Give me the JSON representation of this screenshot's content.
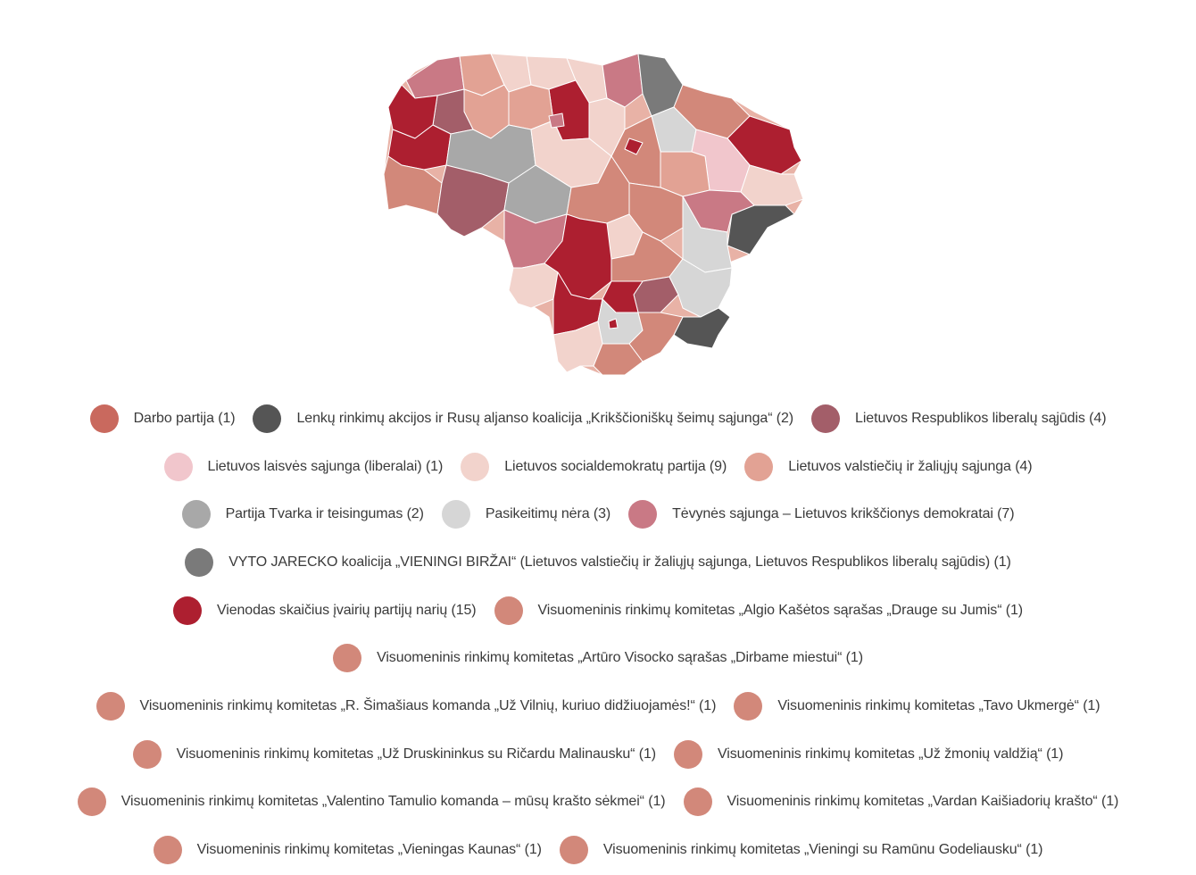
{
  "colors": {
    "darbo": "#c9695e",
    "lenku": "#555555",
    "liberalu": "#a35e69",
    "laisves": "#f1c6cc",
    "socdem": "#f2d3cc",
    "valstieciu": "#e2a294",
    "tvarka": "#a8a8a8",
    "nera": "#d6d6d6",
    "tevynes": "#c97985",
    "jarecko": "#7a7a7a",
    "vienodas": "#ad1f30",
    "komitetas": "#d2887a"
  },
  "legend": {
    "rows": [
      [
        {
          "label": "Darbo partija (1)",
          "color": "#c9695e"
        },
        {
          "label": "Lenkų rinkimų akcijos ir Rusų aljanso koalicija „Krikščioniškų šeimų sąjunga“ (2)",
          "color": "#555555"
        },
        {
          "label": "Lietuvos Respublikos liberalų sąjūdis (4)",
          "color": "#a35e69"
        }
      ],
      [
        {
          "label": "Lietuvos laisvės sąjunga (liberalai) (1)",
          "color": "#f1c6cc"
        },
        {
          "label": "Lietuvos socialdemokratų partija (9)",
          "color": "#f2d3cc"
        },
        {
          "label": "Lietuvos valstiečių ir žaliųjų sąjunga (4)",
          "color": "#e2a294"
        }
      ],
      [
        {
          "label": "Partija Tvarka ir teisingumas (2)",
          "color": "#a8a8a8"
        },
        {
          "label": "Pasikeitimų nėra (3)",
          "color": "#d6d6d6"
        },
        {
          "label": "Tėvynės sąjunga – Lietuvos krikščionys demokratai (7)",
          "color": "#c97985"
        }
      ],
      [
        {
          "label": "VYTO JARECKO koalicija „VIENINGI BIRŽAI“ (Lietuvos valstiečių ir žaliųjų sąjunga, Lietuvos Respublikos liberalų sąjūdis) (1)",
          "color": "#7a7a7a"
        }
      ],
      [
        {
          "label": "Vienodas skaičius įvairių partijų narių (15)",
          "color": "#ad1f30"
        },
        {
          "label": "Visuomeninis rinkimų komitetas „Algio Kašėtos sąrašas „Drauge su Jumis“ (1)",
          "color": "#d2887a"
        }
      ],
      [
        {
          "label": "Visuomeninis rinkimų komitetas „Artūro Visocko sąrašas „Dirbame miestui“ (1)",
          "color": "#d2887a"
        }
      ],
      [
        {
          "label": "Visuomeninis rinkimų komitetas „R. Šimašiaus komanda „Už Vilnių, kuriuo didžiuojamės!“ (1)",
          "color": "#d2887a"
        },
        {
          "label": "Visuomeninis rinkimų komitetas „Tavo Ukmergė“ (1)",
          "color": "#d2887a"
        }
      ],
      [
        {
          "label": "Visuomeninis rinkimų komitetas „Už Druskininkus su Ričardu Malinausku“ (1)",
          "color": "#d2887a"
        },
        {
          "label": "Visuomeninis rinkimų komitetas „Už žmonių valdžią“ (1)",
          "color": "#d2887a"
        }
      ],
      [
        {
          "label": "Visuomeninis rinkimų komitetas „Valentino Tamulio komanda – mūsų krašto sėkmei“ (1)",
          "color": "#d2887a"
        },
        {
          "label": "Visuomeninis rinkimų komitetas „Vardan Kaišiadorių krašto“ (1)",
          "color": "#d2887a"
        }
      ],
      [
        {
          "label": "Visuomeninis rinkimų komitetas „Vieningas Kaunas“ (1)",
          "color": "#d2887a"
        },
        {
          "label": "Visuomeninis rinkimų komitetas „Vieningi su Ramūnu Godeliausku“ (1)",
          "color": "#d2887a"
        }
      ]
    ]
  }
}
